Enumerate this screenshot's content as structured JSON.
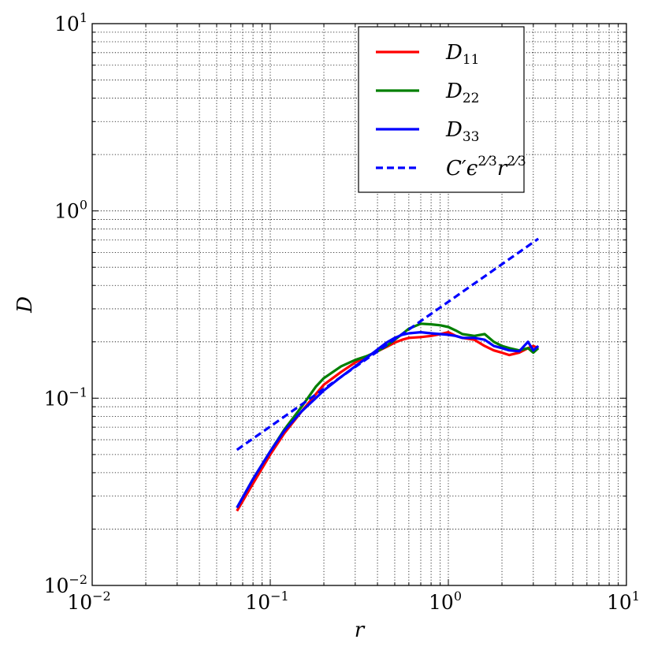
{
  "chart_data": {
    "type": "line",
    "xscale": "log",
    "yscale": "log",
    "xlim": [
      0.01,
      10
    ],
    "ylim": [
      0.01,
      10
    ],
    "xlabel": "r",
    "ylabel": "D",
    "grid": true,
    "legend_position": "top-right",
    "x_ticks": [
      {
        "base": "10",
        "exp": "−2",
        "value": 0.01
      },
      {
        "base": "10",
        "exp": "−1",
        "value": 0.1
      },
      {
        "base": "10",
        "exp": "0",
        "value": 1
      },
      {
        "base": "10",
        "exp": "1",
        "value": 10
      }
    ],
    "y_ticks": [
      {
        "base": "10",
        "exp": "−2",
        "value": 0.01
      },
      {
        "base": "10",
        "exp": "−1",
        "value": 0.1
      },
      {
        "base": "10",
        "exp": "0",
        "value": 1
      },
      {
        "base": "10",
        "exp": "1",
        "value": 10
      }
    ],
    "series": [
      {
        "name": "D",
        "sub": "11",
        "color": "#ff0000",
        "dash": "solid",
        "x": [
          0.065,
          0.08,
          0.1,
          0.12,
          0.15,
          0.18,
          0.2,
          0.25,
          0.3,
          0.35,
          0.4,
          0.45,
          0.5,
          0.55,
          0.6,
          0.7,
          0.8,
          0.9,
          1.0,
          1.1,
          1.2,
          1.4,
          1.6,
          1.8,
          2.0,
          2.2,
          2.5,
          2.8,
          3.0,
          3.2
        ],
        "y": [
          0.025,
          0.035,
          0.05,
          0.065,
          0.085,
          0.105,
          0.118,
          0.138,
          0.155,
          0.168,
          0.178,
          0.188,
          0.198,
          0.205,
          0.21,
          0.212,
          0.215,
          0.22,
          0.225,
          0.215,
          0.21,
          0.205,
          0.19,
          0.18,
          0.175,
          0.17,
          0.175,
          0.185,
          0.19,
          0.185
        ]
      },
      {
        "name": "D",
        "sub": "22",
        "color": "#007f00",
        "dash": "solid",
        "x": [
          0.065,
          0.08,
          0.1,
          0.12,
          0.15,
          0.18,
          0.2,
          0.25,
          0.3,
          0.35,
          0.4,
          0.45,
          0.5,
          0.55,
          0.6,
          0.7,
          0.8,
          0.9,
          1.0,
          1.1,
          1.2,
          1.4,
          1.6,
          1.8,
          2.0,
          2.2,
          2.5,
          2.8,
          3.0,
          3.2
        ],
        "y": [
          0.026,
          0.037,
          0.052,
          0.068,
          0.09,
          0.115,
          0.128,
          0.148,
          0.16,
          0.168,
          0.178,
          0.19,
          0.205,
          0.22,
          0.235,
          0.25,
          0.248,
          0.245,
          0.24,
          0.23,
          0.22,
          0.215,
          0.22,
          0.2,
          0.19,
          0.185,
          0.18,
          0.185,
          0.175,
          0.185
        ]
      },
      {
        "name": "D",
        "sub": "33",
        "color": "#0000ff",
        "dash": "solid",
        "x": [
          0.065,
          0.08,
          0.1,
          0.12,
          0.15,
          0.18,
          0.2,
          0.25,
          0.3,
          0.35,
          0.4,
          0.45,
          0.5,
          0.55,
          0.6,
          0.7,
          0.8,
          0.9,
          1.0,
          1.1,
          1.2,
          1.4,
          1.6,
          1.8,
          2.0,
          2.2,
          2.5,
          2.8,
          3.0,
          3.2
        ],
        "y": [
          0.026,
          0.037,
          0.052,
          0.067,
          0.085,
          0.1,
          0.11,
          0.13,
          0.148,
          0.165,
          0.182,
          0.198,
          0.21,
          0.218,
          0.222,
          0.225,
          0.222,
          0.22,
          0.218,
          0.215,
          0.21,
          0.21,
          0.205,
          0.19,
          0.185,
          0.18,
          0.178,
          0.2,
          0.18,
          0.19
        ]
      },
      {
        "name": "C′ϵ",
        "sup1": "2",
        "sup1_den": "3",
        "name2": "r",
        "sup2": "2",
        "sup2_den": "3",
        "color": "#0000ff",
        "dash": "dashed",
        "x": [
          0.065,
          3.2
        ],
        "y": [
          0.053,
          0.71
        ]
      }
    ]
  }
}
